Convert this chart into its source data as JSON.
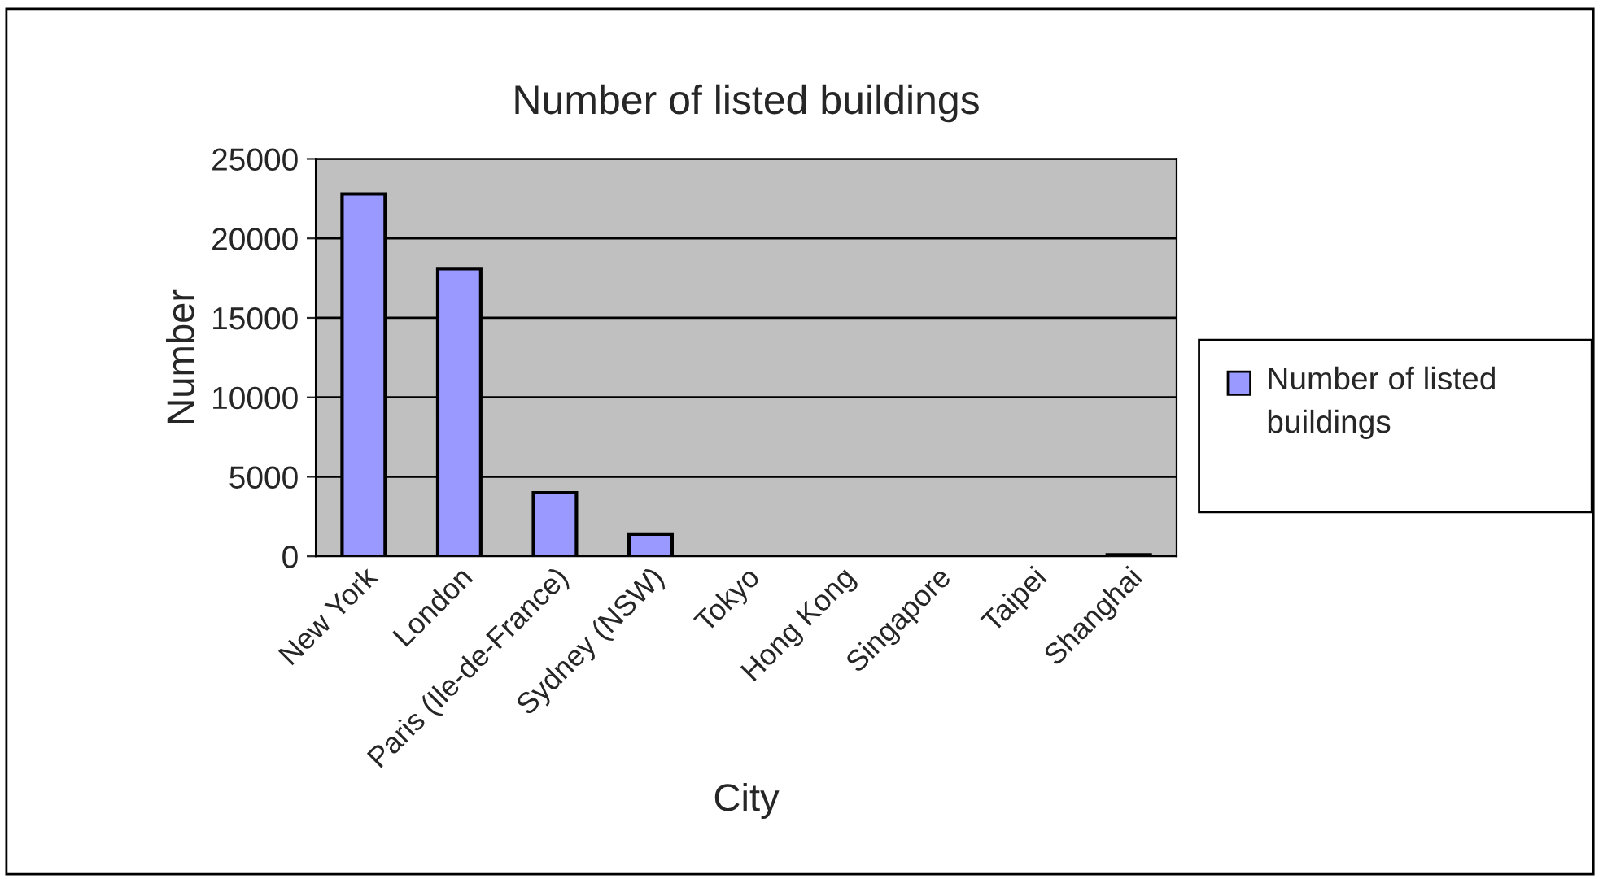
{
  "chart_data": {
    "type": "bar",
    "title": "Number of listed buildings",
    "xlabel": "City",
    "ylabel": "Number",
    "categories": [
      "New York",
      "London",
      "Paris (Ile-de-France)",
      "Sydney (NSW)",
      "Tokyo",
      "Hong Kong",
      "Singapore",
      "Taipei",
      "Shanghai"
    ],
    "series": [
      {
        "name": "Number of listed buildings",
        "color": "#9999ff",
        "values": [
          22800,
          18100,
          4000,
          1400,
          0,
          0,
          0,
          0,
          100
        ]
      }
    ],
    "ylim": [
      0,
      25000
    ],
    "yticks": [
      0,
      5000,
      10000,
      15000,
      20000,
      25000
    ],
    "grid": "y",
    "legend": "right"
  }
}
